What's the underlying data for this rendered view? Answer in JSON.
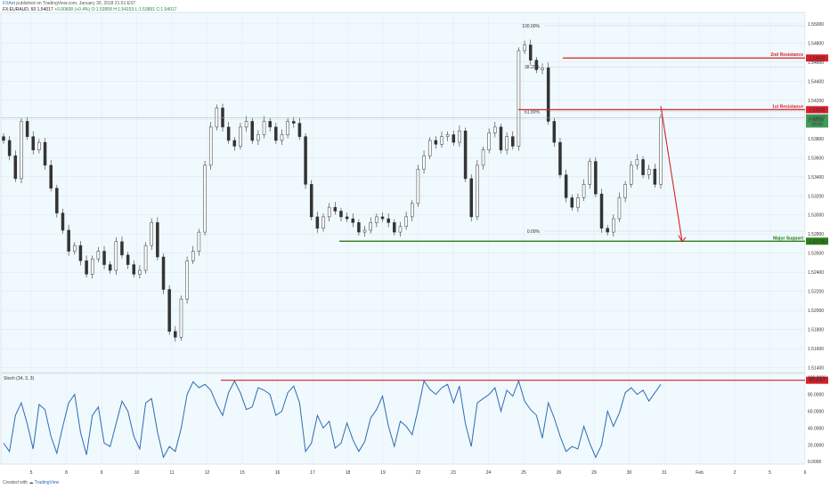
{
  "header": {
    "author": "FXAnt",
    "published": "published on TradingView.com, January 30, 2018 21:51 EST",
    "symbol": "FX:EURAUD, 60",
    "last": "1.54017",
    "change": "+0.00608 (+0.4%)",
    "ohlc": "O:1.53958  H:1.54153  L:1.53891  C:1.54017"
  },
  "footer": {
    "created_with": "Created with",
    "brand": "TradingView"
  },
  "colors": {
    "background": "#f0f9fd",
    "candle": "#333333",
    "resistance": "#d9202a",
    "support": "#2b7d19",
    "stoch": "#2d6bb3",
    "fib": "#aaaaaa",
    "price_tag": "#3f9a5b"
  },
  "chart_data": [
    {
      "type": "line",
      "title": "FX:EURAUD, 60",
      "x_tick_labels": [
        "5",
        "8",
        "9",
        "10",
        "11",
        "12",
        "15",
        "16",
        "17",
        "18",
        "19",
        "22",
        "23",
        "24",
        "25",
        "26",
        "29",
        "30",
        "31",
        "Feb",
        "2",
        "5",
        "6"
      ],
      "y_ticks": [
        "1.55000",
        "1.54800",
        "1.54600",
        "1.54400",
        "1.54200",
        "1.54000",
        "1.53800",
        "1.53600",
        "1.53400",
        "1.53200",
        "1.53000",
        "1.52800",
        "1.52600",
        "1.52400",
        "1.52200",
        "1.52000",
        "1.51800",
        "1.51600",
        "1.51400"
      ],
      "ylim": [
        1.5135,
        1.5512
      ],
      "grid": true,
      "close": [
        1.5378,
        1.5362,
        1.5338,
        1.5398,
        1.5382,
        1.5368,
        1.5376,
        1.5352,
        1.5328,
        1.5302,
        1.5284,
        1.5262,
        1.5268,
        1.5252,
        1.5238,
        1.5254,
        1.5262,
        1.5248,
        1.5242,
        1.5272,
        1.5258,
        1.5248,
        1.5238,
        1.5242,
        1.5268,
        1.5292,
        1.5256,
        1.5222,
        1.5178,
        1.5172,
        1.5212,
        1.5252,
        1.5262,
        1.5282,
        1.5352,
        1.5392,
        1.5412,
        1.5392,
        1.5378,
        1.5372,
        1.5392,
        1.5398,
        1.5378,
        1.5384,
        1.5398,
        1.5392,
        1.5378,
        1.5384,
        1.5398,
        1.5396,
        1.5382,
        1.5332,
        1.5298,
        1.5286,
        1.5298,
        1.5308,
        1.5304,
        1.5298,
        1.5296,
        1.5292,
        1.5282,
        1.5284,
        1.5292,
        1.5298,
        1.5296,
        1.5292,
        1.5282,
        1.5288,
        1.5298,
        1.5312,
        1.5348,
        1.5362,
        1.5378,
        1.5374,
        1.5382,
        1.5384,
        1.5376,
        1.5388,
        1.5338,
        1.5298,
        1.5352,
        1.5368,
        1.5386,
        1.5392,
        1.5368,
        1.5382,
        1.5372,
        1.5472,
        1.5478,
        1.5462,
        1.5452,
        1.5454,
        1.5398,
        1.5376,
        1.5342,
        1.5318,
        1.5308,
        1.5318,
        1.5332,
        1.5356,
        1.5322,
        1.5286,
        1.5282,
        1.5296,
        1.5318,
        1.5332,
        1.5352,
        1.5358,
        1.5342,
        1.5348,
        1.5332,
        1.5402
      ],
      "fibonacci": [
        {
          "label": "100.00%",
          "value": 1.5498
        },
        {
          "label": "38.20%",
          "value": 1.5455
        },
        {
          "label": "61.80%",
          "value": 1.5408
        },
        {
          "label": "0.00%",
          "value": 1.5283
        }
      ],
      "levels": [
        {
          "label": "2nd Resistance",
          "value": "1.54643"
        },
        {
          "label": "1st Resistance",
          "value": "1.54102"
        },
        {
          "label": "Major Support",
          "value": "1.52725"
        }
      ],
      "last_price_tag": {
        "price": "1.54017",
        "countdown": "09:00"
      },
      "forecast_target": 1.5272
    },
    {
      "type": "line",
      "title": "Stoch (34, 3, 3)",
      "y_ticks": [
        "100.0000",
        "80.0000",
        "60.0000",
        "40.0000",
        "20.0000",
        "0.0000"
      ],
      "ylim": [
        -3,
        105
      ],
      "values": [
        22,
        12,
        55,
        70,
        45,
        15,
        68,
        62,
        30,
        10,
        42,
        70,
        80,
        35,
        8,
        55,
        65,
        22,
        18,
        45,
        72,
        60,
        30,
        15,
        70,
        75,
        35,
        5,
        18,
        12,
        40,
        80,
        95,
        88,
        92,
        85,
        68,
        55,
        82,
        96,
        82,
        62,
        65,
        88,
        85,
        80,
        55,
        60,
        82,
        90,
        70,
        12,
        22,
        55,
        40,
        48,
        16,
        22,
        46,
        26,
        12,
        24,
        52,
        62,
        78,
        42,
        18,
        48,
        42,
        32,
        62,
        96,
        86,
        80,
        88,
        92,
        70,
        90,
        45,
        18,
        70,
        75,
        80,
        88,
        60,
        85,
        78,
        96,
        72,
        62,
        55,
        28,
        70,
        52,
        30,
        12,
        18,
        15,
        42,
        22,
        5,
        20,
        60,
        42,
        58,
        82,
        88,
        80,
        85,
        72,
        82,
        92
      ],
      "ob_level": "96.8647"
    }
  ]
}
